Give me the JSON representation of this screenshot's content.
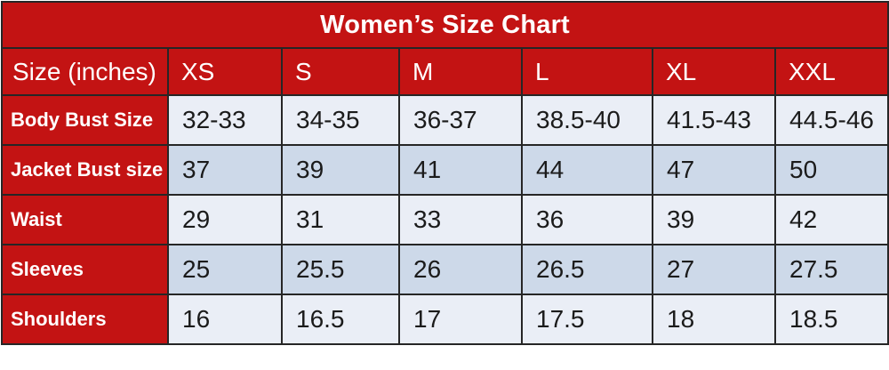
{
  "title": "Women’s Size Chart",
  "colors": {
    "red": "#c31313",
    "row_light": "#eaeef6",
    "row_dark": "#cdd9e9",
    "border": "#262626",
    "header_text": "#ffffff",
    "data_text": "#1b1b1b"
  },
  "header": {
    "label": "Size (inches)",
    "sizes": [
      "XS",
      "S",
      "M",
      "L",
      "XL",
      "XXL"
    ]
  },
  "rows": [
    {
      "label": "Body Bust Size",
      "values": [
        "32-33",
        "34-35",
        "36-37",
        "38.5-40",
        "41.5-43",
        "44.5-46"
      ]
    },
    {
      "label": "Jacket Bust size",
      "values": [
        "37",
        "39",
        "41",
        "44",
        "47",
        "50"
      ]
    },
    {
      "label": "Waist",
      "values": [
        "29",
        "31",
        "33",
        "36",
        "39",
        "42"
      ]
    },
    {
      "label": "Sleeves",
      "values": [
        "25",
        "25.5",
        "26",
        "26.5",
        "27",
        "27.5"
      ]
    },
    {
      "label": "Shoulders",
      "values": [
        "16",
        "16.5",
        "17",
        "17.5",
        "18",
        "18.5"
      ]
    }
  ],
  "chart_data": {
    "type": "table",
    "title": "Women’s Size Chart",
    "columns": [
      "Size (inches)",
      "XS",
      "S",
      "M",
      "L",
      "XL",
      "XXL"
    ],
    "rows": [
      [
        "Body Bust Size",
        "32-33",
        "34-35",
        "36-37",
        "38.5-40",
        "41.5-43",
        "44.5-46"
      ],
      [
        "Jacket Bust size",
        "37",
        "39",
        "41",
        "44",
        "47",
        "50"
      ],
      [
        "Waist",
        "29",
        "31",
        "33",
        "36",
        "39",
        "42"
      ],
      [
        "Sleeves",
        "25",
        "25.5",
        "26",
        "26.5",
        "27",
        "27.5"
      ],
      [
        "Shoulders",
        "16",
        "16.5",
        "17",
        "17.5",
        "18",
        "18.5"
      ]
    ]
  }
}
